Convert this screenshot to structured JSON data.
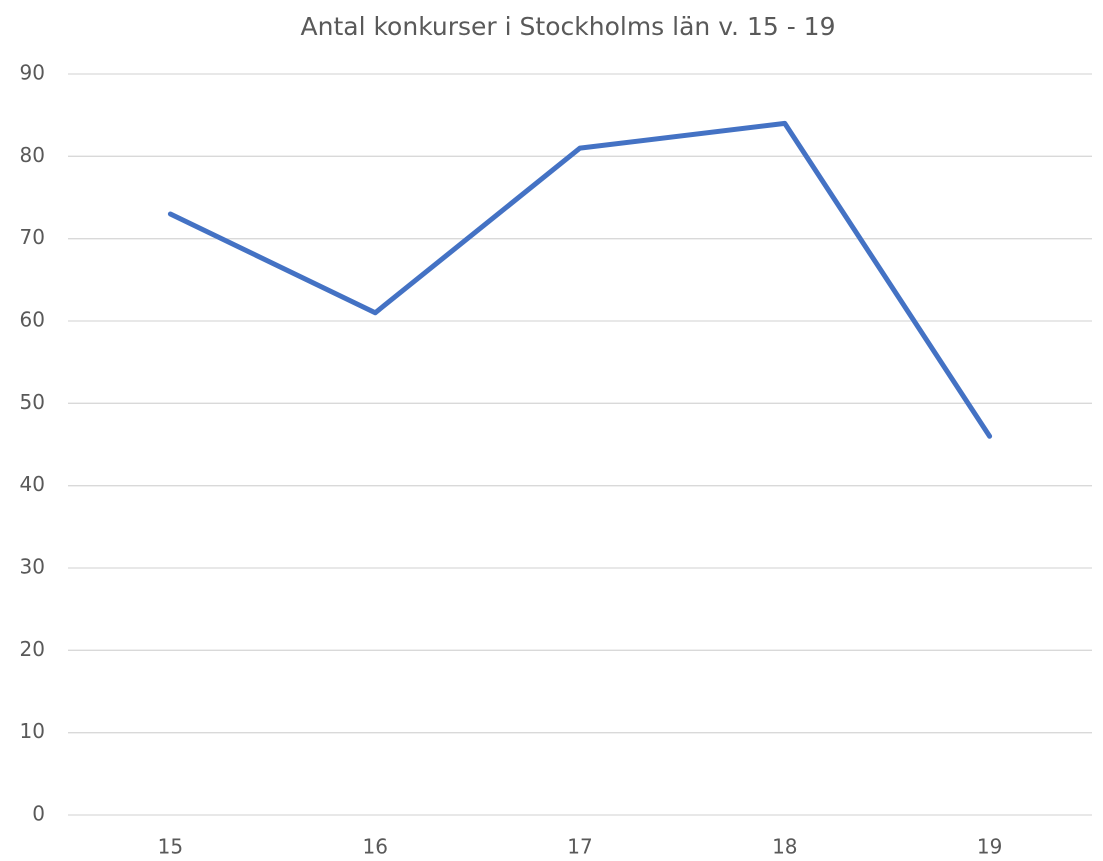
{
  "chart_data": {
    "type": "line",
    "title": "Antal konkurser i Stockholms län v. 15 - 19",
    "categories": [
      "15",
      "16",
      "17",
      "18",
      "19"
    ],
    "series": [
      {
        "color": "#4472c4",
        "values": [
          73,
          61,
          81,
          84,
          46
        ]
      }
    ],
    "ylim": [
      0,
      90
    ],
    "yticks": [
      0,
      10,
      20,
      30,
      40,
      50,
      60,
      70,
      80,
      90
    ],
    "grid": true
  }
}
